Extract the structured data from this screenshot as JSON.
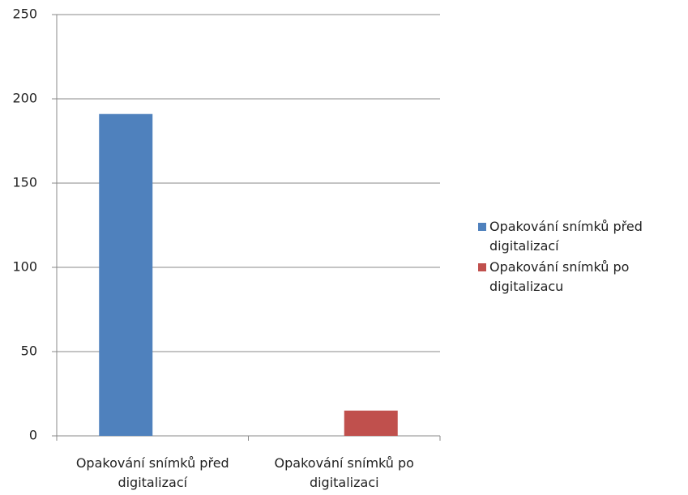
{
  "chart_data": {
    "type": "bar",
    "categories": [
      "Opakování snímků před digitalizací",
      "Opakování snímků po digitalizaci"
    ],
    "series": [
      {
        "name": "Opakování snímků před digitalizací",
        "color": "#4f81bd",
        "values": [
          191,
          null
        ]
      },
      {
        "name": "Opakování snímků po digitalizacu",
        "color": "#c0504d",
        "values": [
          null,
          15
        ]
      }
    ],
    "ylim": [
      0,
      250
    ],
    "yticks": [
      0,
      50,
      100,
      150,
      200,
      250
    ],
    "grid": true,
    "legend": "right"
  }
}
